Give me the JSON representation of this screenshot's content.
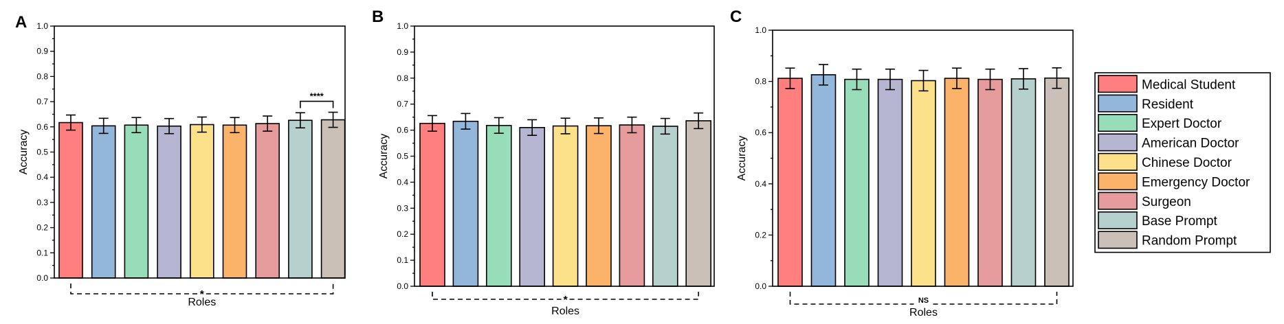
{
  "chart_data": [
    {
      "panel": "A",
      "type": "bar",
      "xlabel": "Roles",
      "ylabel": "Accuracy",
      "ylim": [
        0,
        1.0
      ],
      "yticks": [
        "0.0",
        "0.1",
        "0.2",
        "0.3",
        "0.4",
        "0.5",
        "0.6",
        "0.7",
        "0.8",
        "0.9",
        "1.0"
      ],
      "values": [
        0.617,
        0.604,
        0.607,
        0.603,
        0.609,
        0.607,
        0.613,
        0.626,
        0.628
      ],
      "errors": [
        0.03,
        0.03,
        0.03,
        0.03,
        0.03,
        0.03,
        0.03,
        0.03,
        0.03
      ],
      "group_significance": "*",
      "pair_significance": {
        "bars": [
          7,
          8
        ],
        "label": "****"
      }
    },
    {
      "panel": "B",
      "type": "bar",
      "xlabel": "Roles",
      "ylabel": "Accuracy",
      "ylim": [
        0,
        1.0
      ],
      "yticks": [
        "0.0",
        "0.1",
        "0.2",
        "0.3",
        "0.4",
        "0.5",
        "0.6",
        "0.7",
        "0.8",
        "0.9",
        "1.0"
      ],
      "values": [
        0.626,
        0.634,
        0.618,
        0.61,
        0.616,
        0.617,
        0.62,
        0.615,
        0.636
      ],
      "errors": [
        0.03,
        0.03,
        0.03,
        0.03,
        0.03,
        0.03,
        0.03,
        0.03,
        0.03
      ],
      "group_significance": "*"
    },
    {
      "panel": "C",
      "type": "bar",
      "xlabel": "Roles",
      "ylabel": "Accuracy",
      "ylim": [
        0,
        1.0
      ],
      "yticks": [
        "0.0",
        "0.2",
        "0.4",
        "0.6",
        "0.8",
        "1.0"
      ],
      "values": [
        0.812,
        0.826,
        0.808,
        0.808,
        0.803,
        0.812,
        0.808,
        0.81,
        0.813
      ],
      "errors": [
        0.04,
        0.04,
        0.04,
        0.04,
        0.04,
        0.04,
        0.04,
        0.04,
        0.04
      ],
      "group_significance": "NS"
    }
  ],
  "legend": {
    "entries": [
      {
        "label": "Medical Student",
        "color": "#FF7F7F"
      },
      {
        "label": "Resident",
        "color": "#92B7DB"
      },
      {
        "label": "Expert Doctor",
        "color": "#98DDB9"
      },
      {
        "label": "American Doctor",
        "color": "#B7B6D2"
      },
      {
        "label": "Chinese Doctor",
        "color": "#FDE08A"
      },
      {
        "label": "Emergency Doctor",
        "color": "#FBB36A"
      },
      {
        "label": "Surgeon",
        "color": "#E59B9B"
      },
      {
        "label": "Base Prompt",
        "color": "#B6D0CE"
      },
      {
        "label": "Random Prompt",
        "color": "#CBC0B8"
      }
    ]
  }
}
